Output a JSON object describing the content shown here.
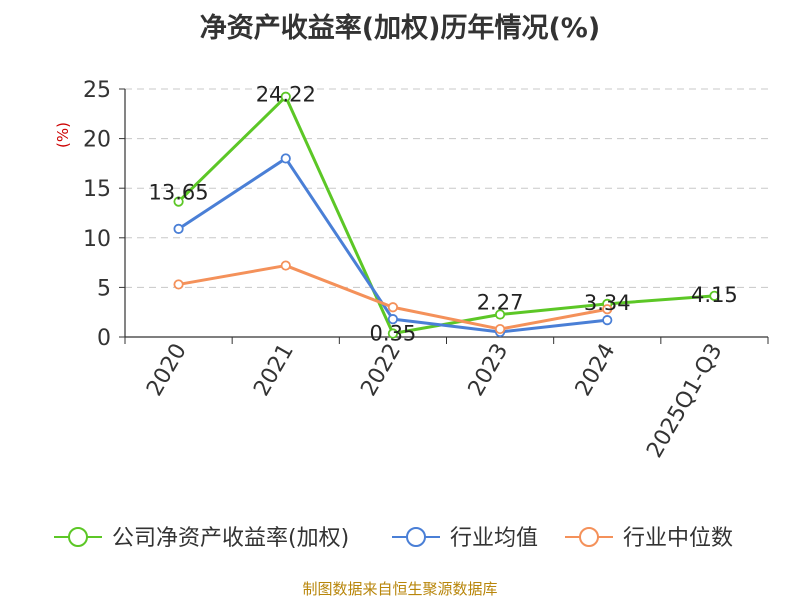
{
  "title": "净资产收益率(加权)历年情况(%)",
  "unit": "(%)",
  "source": "制图数据来自恒生聚源数据库",
  "chart_data": {
    "type": "line",
    "categories": [
      "2020",
      "2021",
      "2022",
      "2023",
      "2024",
      "2025Q1-Q3"
    ],
    "ylim": [
      0,
      25
    ],
    "yticks": [
      0,
      5,
      10,
      15,
      20,
      25
    ],
    "grid": true,
    "legend_position": "bottom",
    "series": [
      {
        "name": "公司净资产收益率(加权)",
        "color": "#5cc726",
        "values": [
          13.65,
          24.22,
          0.35,
          2.27,
          3.34,
          4.15
        ],
        "labels": [
          "13.65",
          "24.22",
          "0.35",
          "2.27",
          "3.34",
          "4.15"
        ]
      },
      {
        "name": "行业均值",
        "color": "#4a7fd6",
        "values": [
          10.9,
          18.0,
          1.8,
          0.5,
          1.7,
          null
        ]
      },
      {
        "name": "行业中位数",
        "color": "#f4915a",
        "values": [
          5.3,
          7.2,
          3.0,
          0.8,
          2.8,
          null
        ]
      }
    ]
  }
}
